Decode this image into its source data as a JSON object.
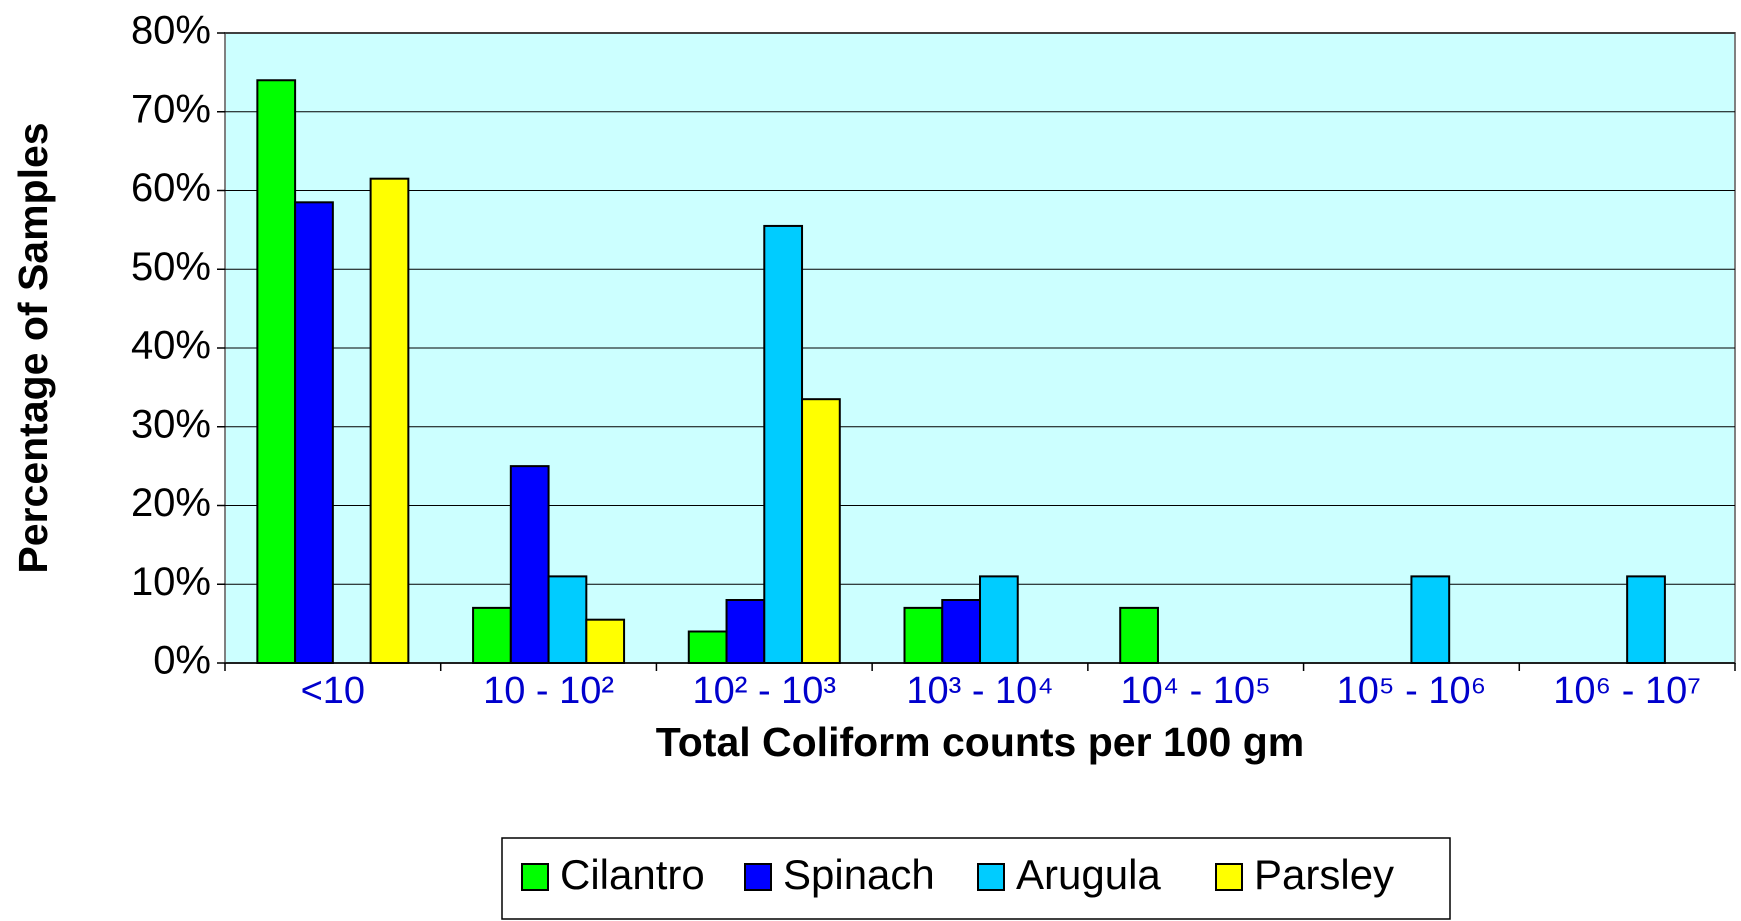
{
  "chart_data": {
    "type": "bar",
    "xlabel": "Total Coliform counts per 100 gm",
    "ylabel": "Percentage of Samples",
    "categories": [
      "<10",
      "10 - 10²",
      "10² - 10³",
      "10³ - 10⁴",
      "10⁴ - 10⁵",
      "10⁵ - 10⁶",
      "10⁶ - 10⁷"
    ],
    "series": [
      {
        "name": "Cilantro",
        "color": "#00ff00",
        "values": [
          74,
          7,
          4,
          7,
          7,
          0,
          0
        ]
      },
      {
        "name": "Spinach",
        "color": "#0000ff",
        "values": [
          58.5,
          25,
          8,
          8,
          0,
          0,
          0
        ]
      },
      {
        "name": "Arugula",
        "color": "#00ccff",
        "values": [
          0,
          11,
          55.5,
          11,
          0,
          11,
          11
        ]
      },
      {
        "name": "Parsley",
        "color": "#ffff00",
        "values": [
          61.5,
          5.5,
          33.5,
          0,
          0,
          0,
          0
        ]
      }
    ],
    "ylim": [
      0,
      80
    ],
    "yticks": [
      {
        "value": 0,
        "label": "0%"
      },
      {
        "value": 10,
        "label": "10%"
      },
      {
        "value": 20,
        "label": "20%"
      },
      {
        "value": 30,
        "label": "30%"
      },
      {
        "value": 40,
        "label": "40%"
      },
      {
        "value": 50,
        "label": "50%"
      },
      {
        "value": 60,
        "label": "60%"
      },
      {
        "value": 70,
        "label": "70%"
      },
      {
        "value": 80,
        "label": "80%"
      }
    ],
    "grid": true,
    "legend": "bottom"
  }
}
